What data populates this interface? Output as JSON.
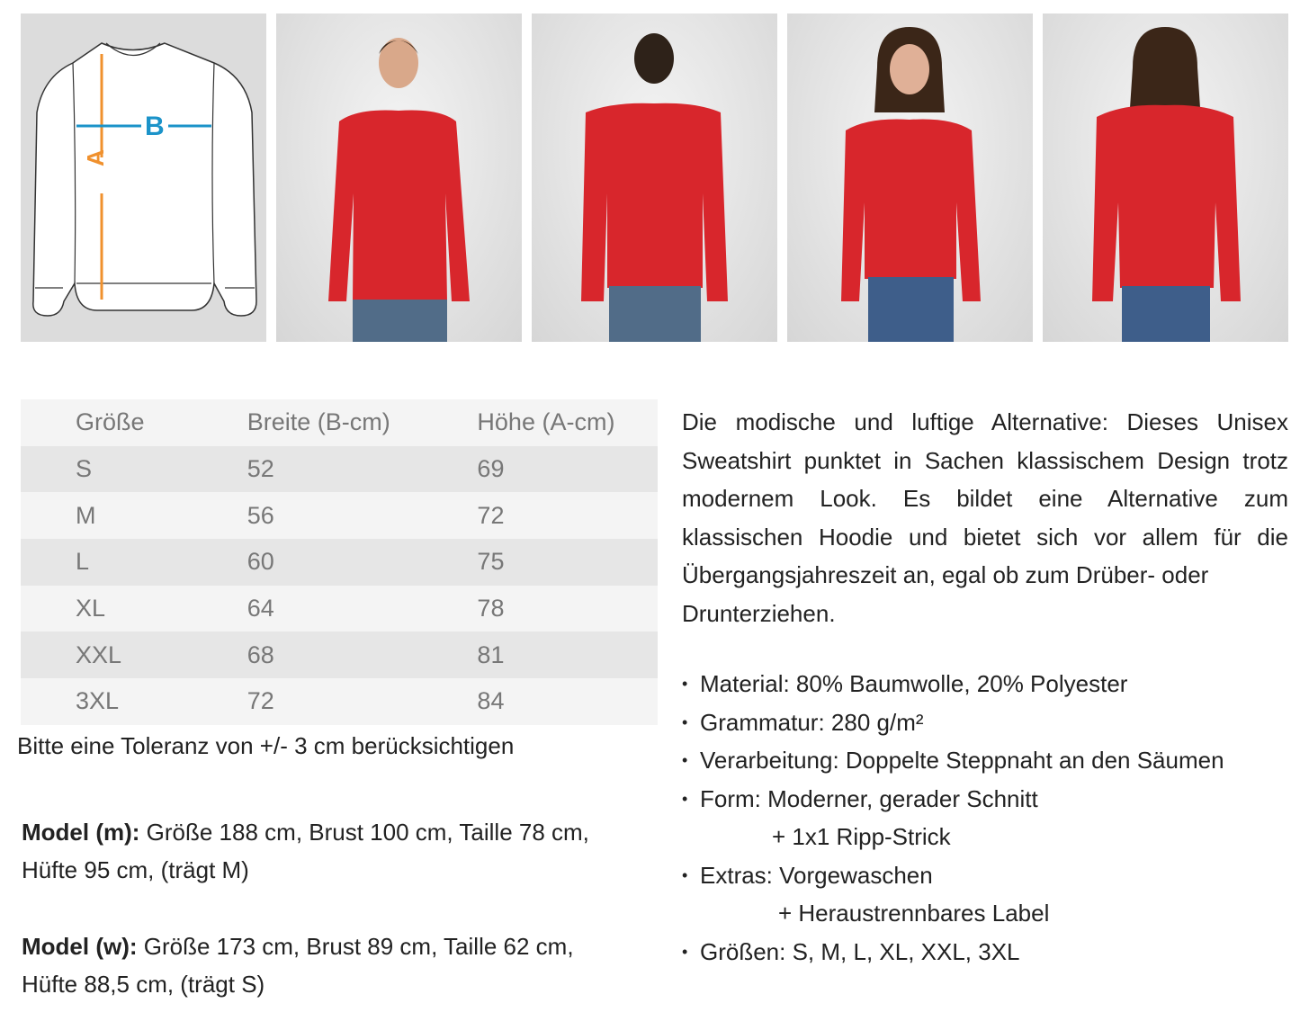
{
  "diagram": {
    "label_a": "A",
    "label_b": "B",
    "arrow_a_color": "#f0912e",
    "arrow_b_color": "#1b93c9"
  },
  "photos": [
    {
      "name": "model-male-front",
      "hair": "#3a2a1e"
    },
    {
      "name": "model-male-back",
      "hair": "#2e2219"
    },
    {
      "name": "model-female-front",
      "hair": "#3b2618"
    },
    {
      "name": "model-female-back",
      "hair": "#3b2618"
    }
  ],
  "garment_color": "#d8262c",
  "size_table": {
    "headers": [
      "Größe",
      "Breite (B-cm)",
      "Höhe (A-cm)"
    ],
    "rows": [
      [
        "S",
        "52",
        "69"
      ],
      [
        "M",
        "56",
        "72"
      ],
      [
        "L",
        "60",
        "75"
      ],
      [
        "XL",
        "64",
        "78"
      ],
      [
        "XXL",
        "68",
        "81"
      ],
      [
        "3XL",
        "72",
        "84"
      ]
    ]
  },
  "tolerance_note": "Bitte eine Toleranz von +/- 3 cm berücksichtigen",
  "models": [
    {
      "label": "Model (m):",
      "line1": " Größe 188 cm, Brust 100 cm, Taille 78 cm,",
      "line2": "Hüfte 95 cm, (trägt M)"
    },
    {
      "label": "Model (w):",
      "line1": " Größe 173 cm, Brust 89 cm, Taille 62 cm,",
      "line2": "Hüfte 88,5 cm, (trägt S)"
    }
  ],
  "description": "Die modische und luftige Alternative: Dieses Unisex Sweatshirt punktet in Sachen klassischem Design trotz modernem Look. Es bildet eine Alternative zum klassischen Hoodie und bietet sich vor allem für die Übergangsjahreszeit an, egal ob zum Drüber- oder",
  "description_end": "Drunterziehen.",
  "features": [
    {
      "text": "Material: 80% Baumwolle, 20% Polyester"
    },
    {
      "text": "Grammatur: 280 g/m²"
    },
    {
      "text": "Verarbeitung: Doppelte Steppnaht an den Säumen"
    },
    {
      "text": "Form: Moderner, gerader Schnitt",
      "cont": "+ 1x1 Ripp-Strick"
    },
    {
      "text": "Extras: Vorgewaschen",
      "cont": "+ Heraustrennbares Label"
    },
    {
      "text": "Größen:  S, M, L, XL, XXL, 3XL"
    }
  ],
  "bullet": "•"
}
